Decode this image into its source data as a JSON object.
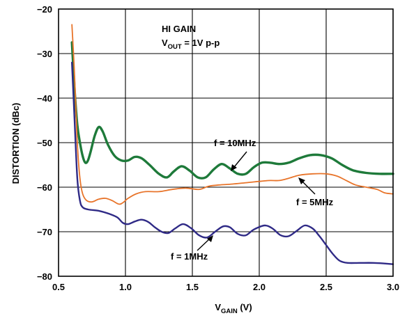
{
  "chart_data": {
    "type": "line",
    "title": "",
    "xlabel": "V",
    "xlabel_sub": "GAIN",
    "xlabel_unit": " (V)",
    "ylabel": "DISTORTION (dBc)",
    "xlim": [
      0.5,
      3.0
    ],
    "ylim": [
      -80,
      -20
    ],
    "x_ticks": [
      "0.5",
      "1.0",
      "1.5",
      "2.0",
      "2.5",
      "3.0"
    ],
    "y_ticks": [
      "−80",
      "−70",
      "−60",
      "−50",
      "−40",
      "−30",
      "−20"
    ],
    "grid": true,
    "conditions": {
      "line1": "HI GAIN",
      "line2_prefix": "V",
      "line2_sub": "OUT",
      "line2_suffix": " = 1V p-p"
    },
    "series": [
      {
        "name": "f = 10MHz",
        "color": "#1e7a3a",
        "points": [
          [
            0.6,
            -27.5
          ],
          [
            0.62,
            -38
          ],
          [
            0.64,
            -46
          ],
          [
            0.66,
            -50
          ],
          [
            0.68,
            -53
          ],
          [
            0.7,
            -54.5
          ],
          [
            0.72,
            -54
          ],
          [
            0.74,
            -52
          ],
          [
            0.77,
            -48.5
          ],
          [
            0.8,
            -46.5
          ],
          [
            0.83,
            -47.5
          ],
          [
            0.87,
            -50.5
          ],
          [
            0.92,
            -53
          ],
          [
            0.97,
            -54
          ],
          [
            1.02,
            -54
          ],
          [
            1.07,
            -53.2
          ],
          [
            1.12,
            -53.5
          ],
          [
            1.18,
            -55
          ],
          [
            1.25,
            -57
          ],
          [
            1.31,
            -57.8
          ],
          [
            1.36,
            -56.5
          ],
          [
            1.42,
            -55.3
          ],
          [
            1.48,
            -56.3
          ],
          [
            1.54,
            -57.8
          ],
          [
            1.6,
            -57.8
          ],
          [
            1.66,
            -56
          ],
          [
            1.72,
            -54.8
          ],
          [
            1.78,
            -55.8
          ],
          [
            1.84,
            -57
          ],
          [
            1.9,
            -57
          ],
          [
            1.96,
            -55.5
          ],
          [
            2.02,
            -54.5
          ],
          [
            2.08,
            -54.5
          ],
          [
            2.15,
            -54.8
          ],
          [
            2.22,
            -54.5
          ],
          [
            2.3,
            -53.5
          ],
          [
            2.38,
            -52.8
          ],
          [
            2.46,
            -52.8
          ],
          [
            2.54,
            -53.5
          ],
          [
            2.62,
            -55
          ],
          [
            2.7,
            -56.2
          ],
          [
            2.8,
            -56.8
          ],
          [
            2.9,
            -57
          ],
          [
            3.0,
            -57
          ]
        ]
      },
      {
        "name": "f = 5MHz",
        "color": "#e8742a",
        "points": [
          [
            0.6,
            -23.5
          ],
          [
            0.62,
            -35
          ],
          [
            0.64,
            -50
          ],
          [
            0.66,
            -58
          ],
          [
            0.68,
            -61.5
          ],
          [
            0.71,
            -63
          ],
          [
            0.75,
            -63.3
          ],
          [
            0.8,
            -62.7
          ],
          [
            0.85,
            -62.5
          ],
          [
            0.9,
            -63
          ],
          [
            0.95,
            -63.8
          ],
          [
            0.98,
            -63.5
          ],
          [
            1.02,
            -62.5
          ],
          [
            1.08,
            -61.5
          ],
          [
            1.15,
            -61
          ],
          [
            1.25,
            -61
          ],
          [
            1.35,
            -60.5
          ],
          [
            1.45,
            -60.2
          ],
          [
            1.55,
            -60.5
          ],
          [
            1.62,
            -59.8
          ],
          [
            1.7,
            -59.5
          ],
          [
            1.8,
            -59.3
          ],
          [
            1.9,
            -59
          ],
          [
            2.0,
            -58.7
          ],
          [
            2.08,
            -58.5
          ],
          [
            2.15,
            -58.5
          ],
          [
            2.22,
            -58
          ],
          [
            2.3,
            -57.3
          ],
          [
            2.4,
            -57
          ],
          [
            2.5,
            -57
          ],
          [
            2.58,
            -57.5
          ],
          [
            2.65,
            -58.5
          ],
          [
            2.72,
            -59.5
          ],
          [
            2.8,
            -60
          ],
          [
            2.88,
            -60.5
          ],
          [
            2.94,
            -61.3
          ],
          [
            3.0,
            -61.5
          ]
        ]
      },
      {
        "name": "f = 1MHz",
        "color": "#2f2a86",
        "points": [
          [
            0.6,
            -32
          ],
          [
            0.62,
            -45
          ],
          [
            0.64,
            -58
          ],
          [
            0.66,
            -63
          ],
          [
            0.68,
            -64.5
          ],
          [
            0.72,
            -65
          ],
          [
            0.8,
            -65.3
          ],
          [
            0.88,
            -66
          ],
          [
            0.94,
            -66.8
          ],
          [
            0.98,
            -68
          ],
          [
            1.02,
            -68.3
          ],
          [
            1.07,
            -67.7
          ],
          [
            1.12,
            -67.3
          ],
          [
            1.17,
            -67.8
          ],
          [
            1.22,
            -69
          ],
          [
            1.27,
            -70
          ],
          [
            1.32,
            -70.3
          ],
          [
            1.37,
            -69.3
          ],
          [
            1.43,
            -68.3
          ],
          [
            1.49,
            -69.2
          ],
          [
            1.55,
            -70.8
          ],
          [
            1.61,
            -71.3
          ],
          [
            1.67,
            -70
          ],
          [
            1.73,
            -68.8
          ],
          [
            1.78,
            -69
          ],
          [
            1.84,
            -70.5
          ],
          [
            1.9,
            -70.8
          ],
          [
            1.96,
            -69.5
          ],
          [
            2.04,
            -68.6
          ],
          [
            2.1,
            -69.3
          ],
          [
            2.16,
            -70.8
          ],
          [
            2.22,
            -71
          ],
          [
            2.28,
            -69.8
          ],
          [
            2.34,
            -68.6
          ],
          [
            2.4,
            -69.3
          ],
          [
            2.45,
            -71
          ],
          [
            2.5,
            -73
          ],
          [
            2.55,
            -75
          ],
          [
            2.6,
            -76.5
          ],
          [
            2.66,
            -77
          ],
          [
            2.75,
            -77
          ],
          [
            2.85,
            -77
          ],
          [
            2.92,
            -77.1
          ],
          [
            3.0,
            -77.3
          ]
        ]
      }
    ]
  }
}
